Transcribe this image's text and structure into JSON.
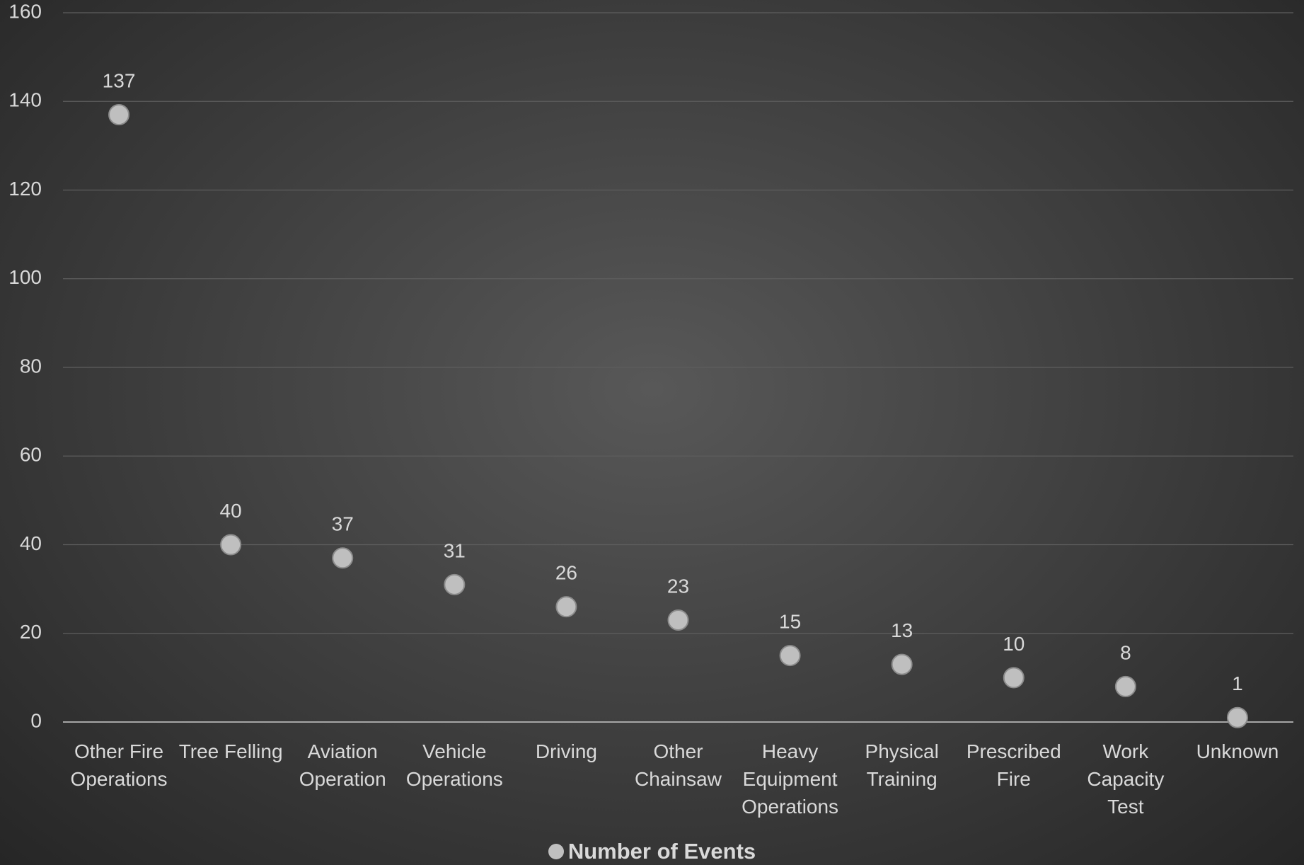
{
  "chart_data": {
    "type": "scatter",
    "categories": [
      "Other Fire Operations",
      "Tree Felling",
      "Aviation Operation",
      "Vehicle Operations",
      "Driving",
      "Other Chainsaw",
      "Heavy Equipment Operations",
      "Physical Training",
      "Prescribed Fire",
      "Work Capacity Test",
      "Unknown"
    ],
    "series": [
      {
        "name": "Number of Events",
        "color": "#bfbfbf",
        "values": [
          137,
          40,
          37,
          31,
          26,
          23,
          15,
          13,
          10,
          8,
          1
        ]
      }
    ],
    "ylim": [
      0,
      160
    ],
    "yticks": [
      0,
      20,
      40,
      60,
      80,
      100,
      120,
      140,
      160
    ],
    "grid": true,
    "legend": "bottom"
  }
}
